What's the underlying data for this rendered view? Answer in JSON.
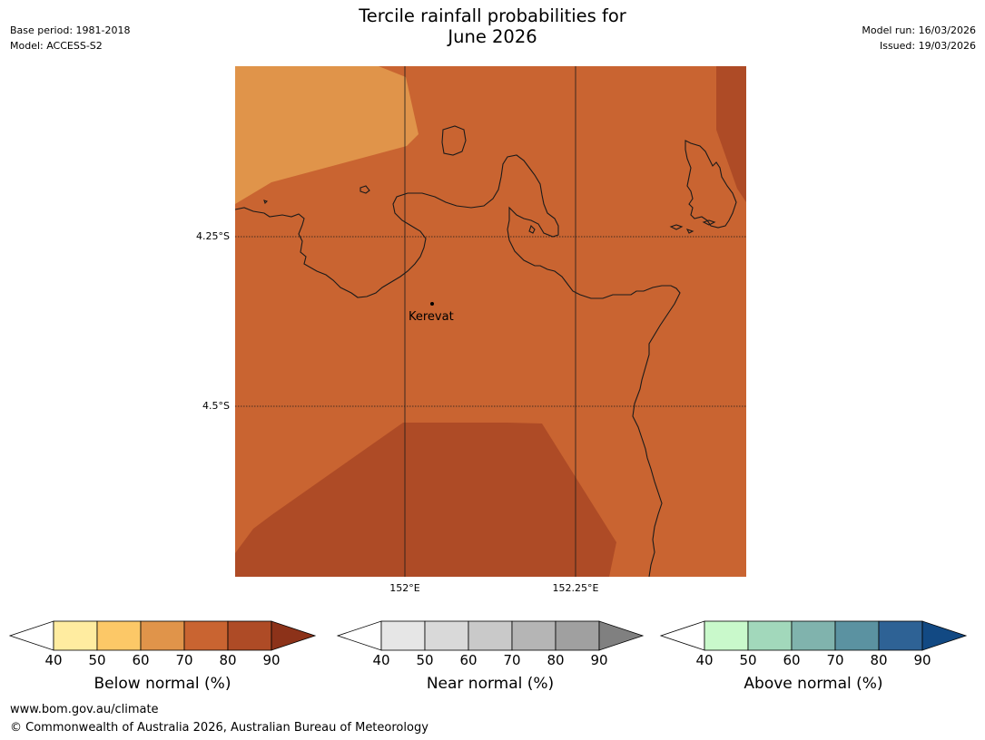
{
  "title_line1": "Tercile rainfall probabilities for",
  "title_line2": "June 2026",
  "meta_left": {
    "base_period": "Base period: 1981-2018",
    "model": "Model: ACCESS-S2"
  },
  "meta_right": {
    "model_run": "Model run: 16/03/2026",
    "issued": "Issued: 19/03/2026"
  },
  "map": {
    "lat_labels": [
      "4.25°S",
      "4.5°S"
    ],
    "lon_labels": [
      "152°E",
      "152.25°E"
    ],
    "city": {
      "name": "Kerevat"
    },
    "region_colors": {
      "p60_70": "#e0944a",
      "p70_80": "#c96431",
      "p80_90": "#ae4b26"
    }
  },
  "colorbars": [
    {
      "label": "Below normal (%)",
      "ticks": [
        "40",
        "50",
        "60",
        "70",
        "80",
        "90"
      ],
      "colors": [
        "#ffeca0",
        "#fcc867",
        "#e0944a",
        "#c96431",
        "#ae4b26"
      ],
      "extend_color": "#8c3219"
    },
    {
      "label": "Near normal (%)",
      "ticks": [
        "40",
        "50",
        "60",
        "70",
        "80",
        "90"
      ],
      "colors": [
        "#e6e6e6",
        "#d9d9d9",
        "#c9c9c9",
        "#b5b5b5",
        "#a0a0a0"
      ],
      "extend_color": "#808080"
    },
    {
      "label": "Above normal (%)",
      "ticks": [
        "40",
        "50",
        "60",
        "70",
        "80",
        "90"
      ],
      "colors": [
        "#c9f9cb",
        "#a2d8bb",
        "#80b3ad",
        "#5b92a1",
        "#2e6295"
      ],
      "extend_color": "#124983"
    }
  ],
  "footer": {
    "url": "www.bom.gov.au/climate",
    "copyright": "© Commonwealth of Australia 2026, Australian Bureau of Meteorology"
  }
}
